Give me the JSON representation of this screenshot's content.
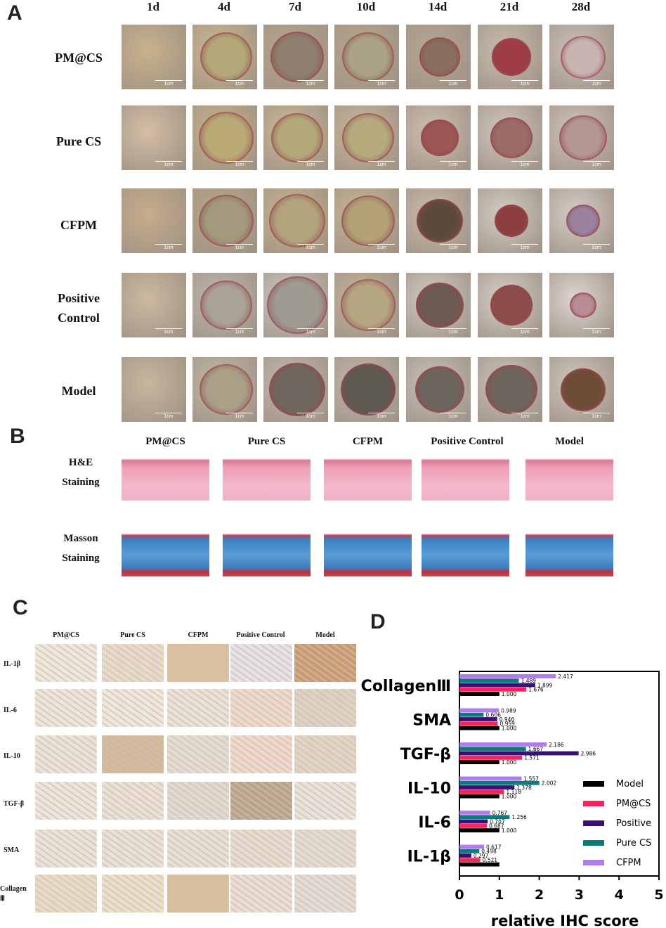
{
  "panels": {
    "a": "A",
    "b": "B",
    "c": "C",
    "d": "D"
  },
  "panel_a": {
    "days": [
      "1d",
      "4d",
      "7d",
      "10d",
      "14d",
      "21d",
      "28d"
    ],
    "groups": [
      "PM@CS",
      "Pure CS",
      "CFPM",
      "Positive Control",
      "Model"
    ],
    "scale_label": "1cm"
  },
  "panel_b": {
    "groups": [
      "PM@CS",
      "Pure CS",
      "CFPM",
      "Positive Control",
      "Model"
    ],
    "stains": [
      "H&E Staining",
      "Masson Staining"
    ]
  },
  "panel_c": {
    "groups": [
      "PM@CS",
      "Pure CS",
      "CFPM",
      "Positive Control",
      "Model"
    ],
    "markers": [
      "IL-1β",
      "IL-6",
      "IL-10",
      "TGF-β",
      "SMA",
      "Collagen Ⅲ"
    ]
  },
  "chart_data": {
    "type": "bar",
    "orientation": "horizontal",
    "categories": [
      "CollagenⅢ",
      "SMA",
      "TGF-β",
      "IL-10",
      "IL-6",
      "IL-1β"
    ],
    "series": [
      {
        "name": "Model",
        "color": "#000000",
        "values": [
          1.0,
          1.0,
          1.0,
          1.0,
          1.0,
          1.0
        ],
        "labels": [
          "1.000",
          "1.000",
          "1.000",
          "1.000",
          "1.000",
          ""
        ]
      },
      {
        "name": "PM@CS",
        "color": "#ff1f5b",
        "values": [
          1.676,
          0.959,
          1.571,
          1.118,
          0.687,
          0.521
        ],
        "labels": [
          "1.676",
          "0.959",
          "1.571",
          "1.118",
          "0.687",
          "0.521"
        ]
      },
      {
        "name": "Positive",
        "color": "#3a0f7a",
        "values": [
          1.899,
          0.946,
          2.986,
          1.378,
          0.707,
          0.297
        ],
        "labels": [
          "1.899",
          "0.946",
          "2.986",
          "1.378",
          "0.707",
          "0.297"
        ]
      },
      {
        "name": "Pure CS",
        "color": "#0f7a7a",
        "values": [
          1.489,
          0.606,
          1.667,
          2.002,
          1.256,
          0.498
        ],
        "labels": [
          "1.489",
          "0.606",
          "1.667",
          "2.002",
          "1.256",
          "0.498"
        ]
      },
      {
        "name": "CFPM",
        "color": "#b07cf0",
        "values": [
          2.417,
          0.989,
          2.186,
          1.557,
          0.767,
          0.617
        ],
        "labels": [
          "2.417",
          "0.989",
          "2.186",
          "1.557",
          "0.767",
          "0.617"
        ]
      }
    ],
    "xlabel": "relative IHC score",
    "xlim": [
      0,
      5
    ],
    "xticks": [
      "0",
      "1",
      "2",
      "3",
      "4",
      "5"
    ],
    "legend_position": "right"
  }
}
